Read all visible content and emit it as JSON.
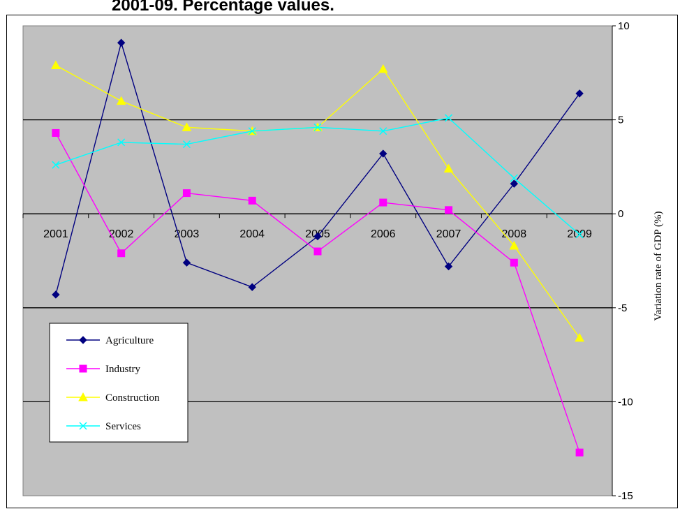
{
  "header": {
    "title_fragment": "2001-09. Percentage values."
  },
  "chart_data": {
    "type": "line",
    "categories": [
      "2001",
      "2002",
      "2003",
      "2004",
      "2005",
      "2006",
      "2007",
      "2008",
      "2009"
    ],
    "ylabel": "Variation rate of GDP (%)",
    "ylim": [
      -15,
      10
    ],
    "yticks": [
      10,
      5,
      0,
      -5,
      -10,
      -15
    ],
    "grid": true,
    "legend_position": "bottom-left",
    "background_color": "#c0c0c0",
    "series": [
      {
        "name": "Agriculture",
        "color": "#000080",
        "marker": "diamond",
        "values": [
          -4.3,
          9.1,
          -2.6,
          -3.9,
          -1.2,
          3.2,
          -2.8,
          1.6,
          6.4
        ]
      },
      {
        "name": "Industry",
        "color": "#ff00ff",
        "marker": "square",
        "values": [
          4.3,
          -2.1,
          1.1,
          0.7,
          -2.0,
          0.6,
          0.2,
          -2.6,
          -12.7
        ]
      },
      {
        "name": "Construction",
        "color": "#ffff00",
        "marker": "triangle",
        "values": [
          7.9,
          6.0,
          4.6,
          4.4,
          4.6,
          7.7,
          2.4,
          -1.7,
          -6.6
        ]
      },
      {
        "name": "Services",
        "color": "#00ffff",
        "marker": "x",
        "values": [
          2.6,
          3.8,
          3.7,
          4.4,
          4.6,
          4.4,
          5.1,
          1.9,
          -1.1
        ]
      }
    ]
  }
}
